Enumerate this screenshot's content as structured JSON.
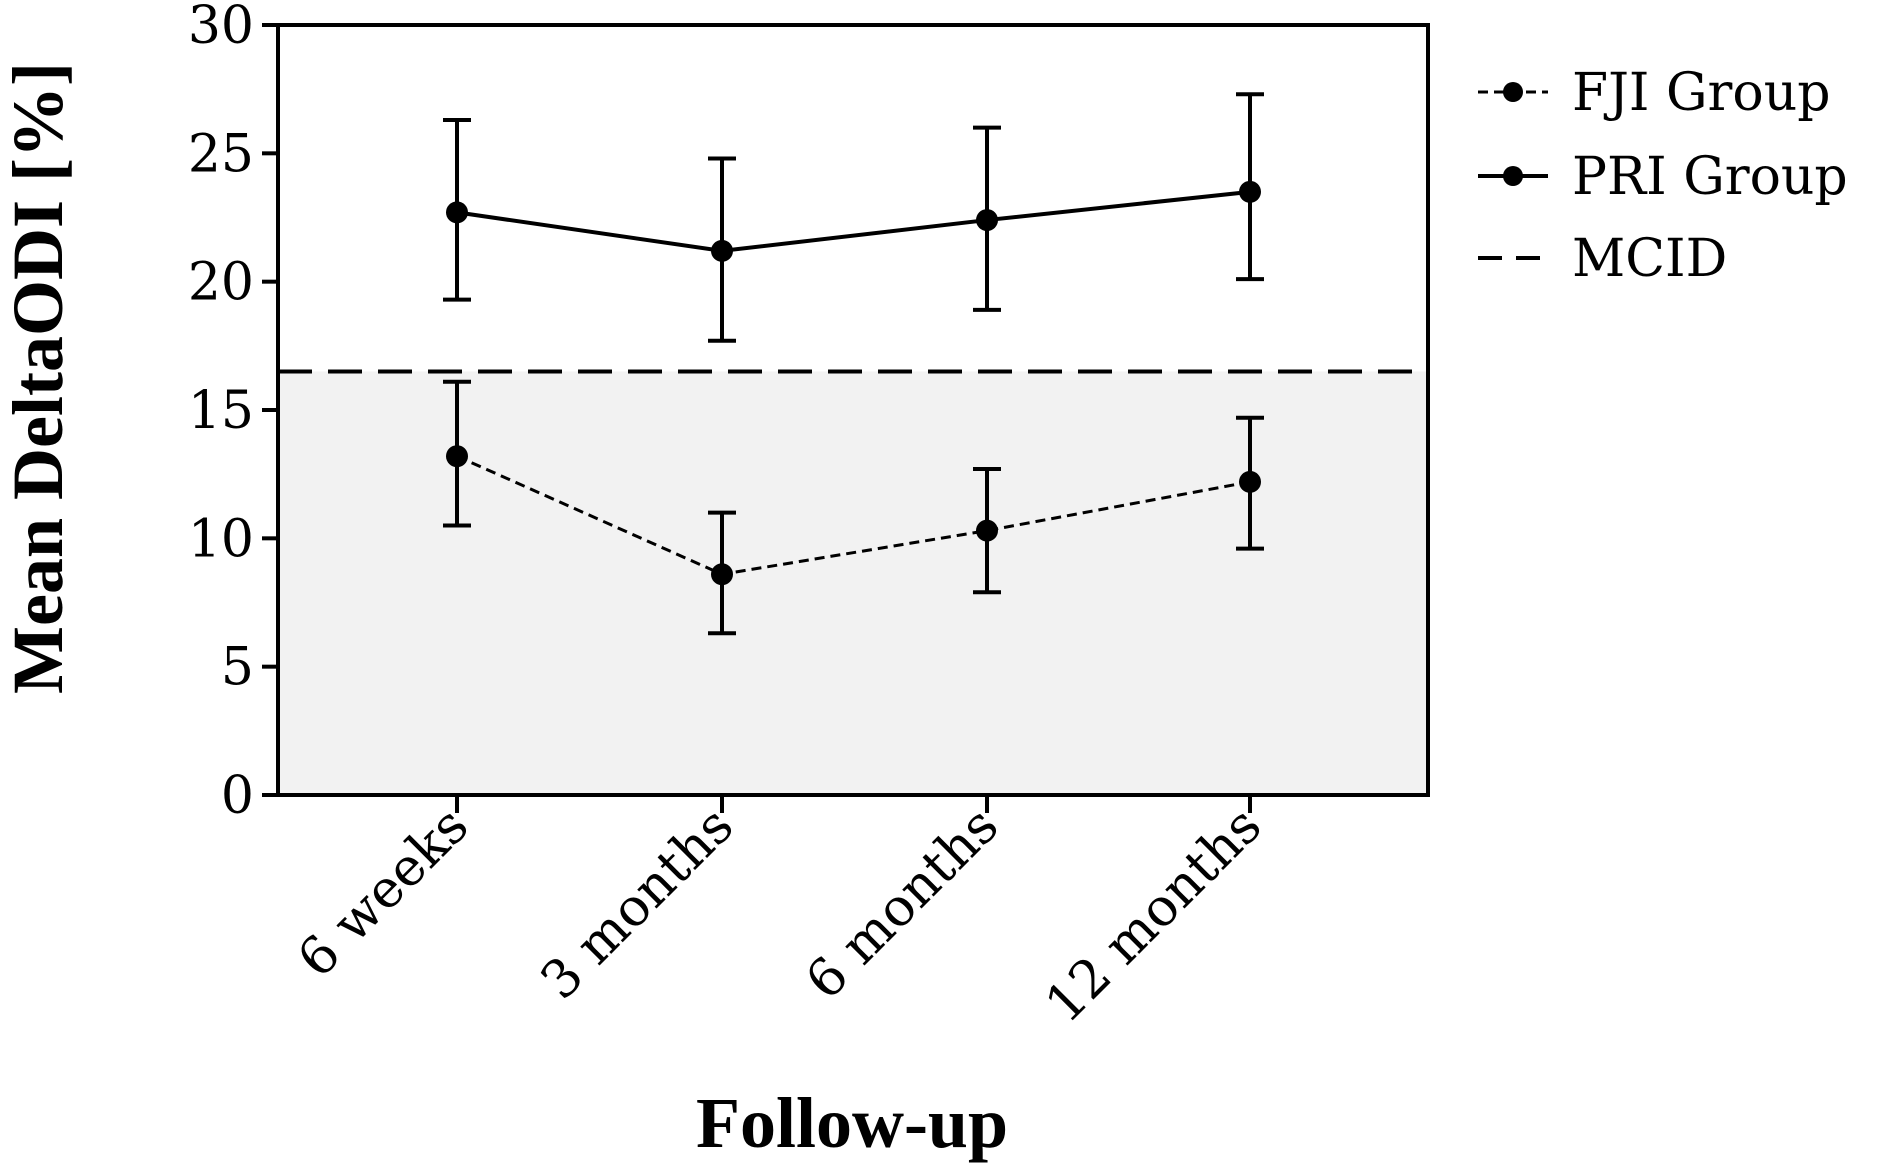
{
  "chart_data": {
    "type": "line",
    "title": "",
    "xlabel": "Follow-up",
    "ylabel": "Mean DeltaODI [%]",
    "ylim": [
      0,
      30
    ],
    "yticks": [
      "0",
      "5",
      "10",
      "15",
      "20",
      "25",
      "30"
    ],
    "categories": [
      "6 weeks",
      "3 months",
      "6 months",
      "12 months"
    ],
    "series": [
      {
        "name": "FJI Group",
        "style": "dashed",
        "values": [
          13.2,
          8.6,
          10.3,
          12.2
        ],
        "err_low": [
          10.5,
          6.3,
          7.9,
          9.6
        ],
        "err_high": [
          16.1,
          11.0,
          12.7,
          14.7
        ]
      },
      {
        "name": "PRI Group",
        "style": "solid",
        "values": [
          22.7,
          21.2,
          22.4,
          23.5
        ],
        "err_low": [
          19.3,
          17.7,
          18.9,
          20.1
        ],
        "err_high": [
          26.3,
          24.8,
          26.0,
          27.3
        ]
      }
    ],
    "reference_lines": [
      {
        "name": "MCID",
        "value": 16.5,
        "style": "dashed"
      }
    ],
    "shaded_region": {
      "from": 0,
      "to": 16.5,
      "color": "#f2f2f2"
    },
    "legend": [
      "FJI Group",
      "PRI Group",
      "MCID"
    ],
    "legend_position": "top-right-outside",
    "grid": false
  }
}
